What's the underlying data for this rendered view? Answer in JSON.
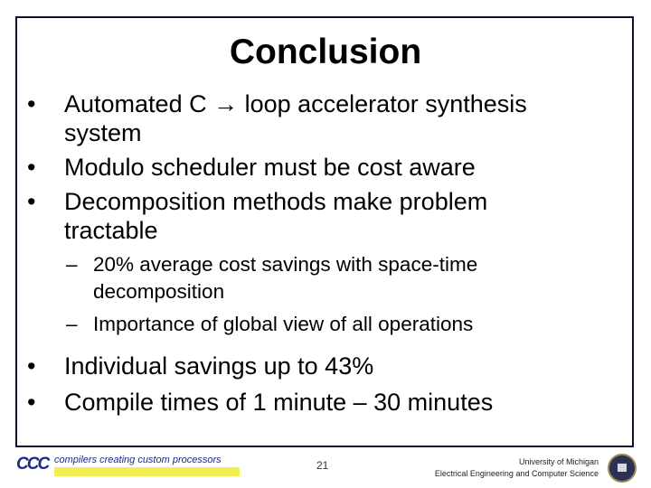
{
  "title": "Conclusion",
  "bullets": [
    {
      "marker": "•",
      "lines": [
        "Automated C → loop accelerator synthesis",
        "system"
      ]
    },
    {
      "marker": "•",
      "lines": [
        "Modulo scheduler must be cost aware"
      ]
    },
    {
      "marker": "•",
      "lines": [
        "Decomposition methods make problem",
        "tractable"
      ]
    }
  ],
  "sub_bullets": [
    {
      "marker": "–",
      "lines": [
        "20% average cost savings with space-time",
        "decomposition"
      ]
    },
    {
      "marker": "–",
      "lines": [
        "Importance of global view of all operations"
      ]
    }
  ],
  "bullets2": [
    {
      "marker": "•",
      "text": "Individual savings up to 43%"
    },
    {
      "marker": "•",
      "text": "Compile times of 1 minute – 30 minutes"
    }
  ],
  "footer": {
    "logo_text": "CCC",
    "tagline": "compilers creating custom processors",
    "page_number": "21",
    "university": "University of Michigan",
    "department": "Electrical Engineering and Computer Science"
  },
  "colors": {
    "border": "#13102e",
    "logo": "#1a2a8c",
    "highlight": "#f2f050"
  }
}
